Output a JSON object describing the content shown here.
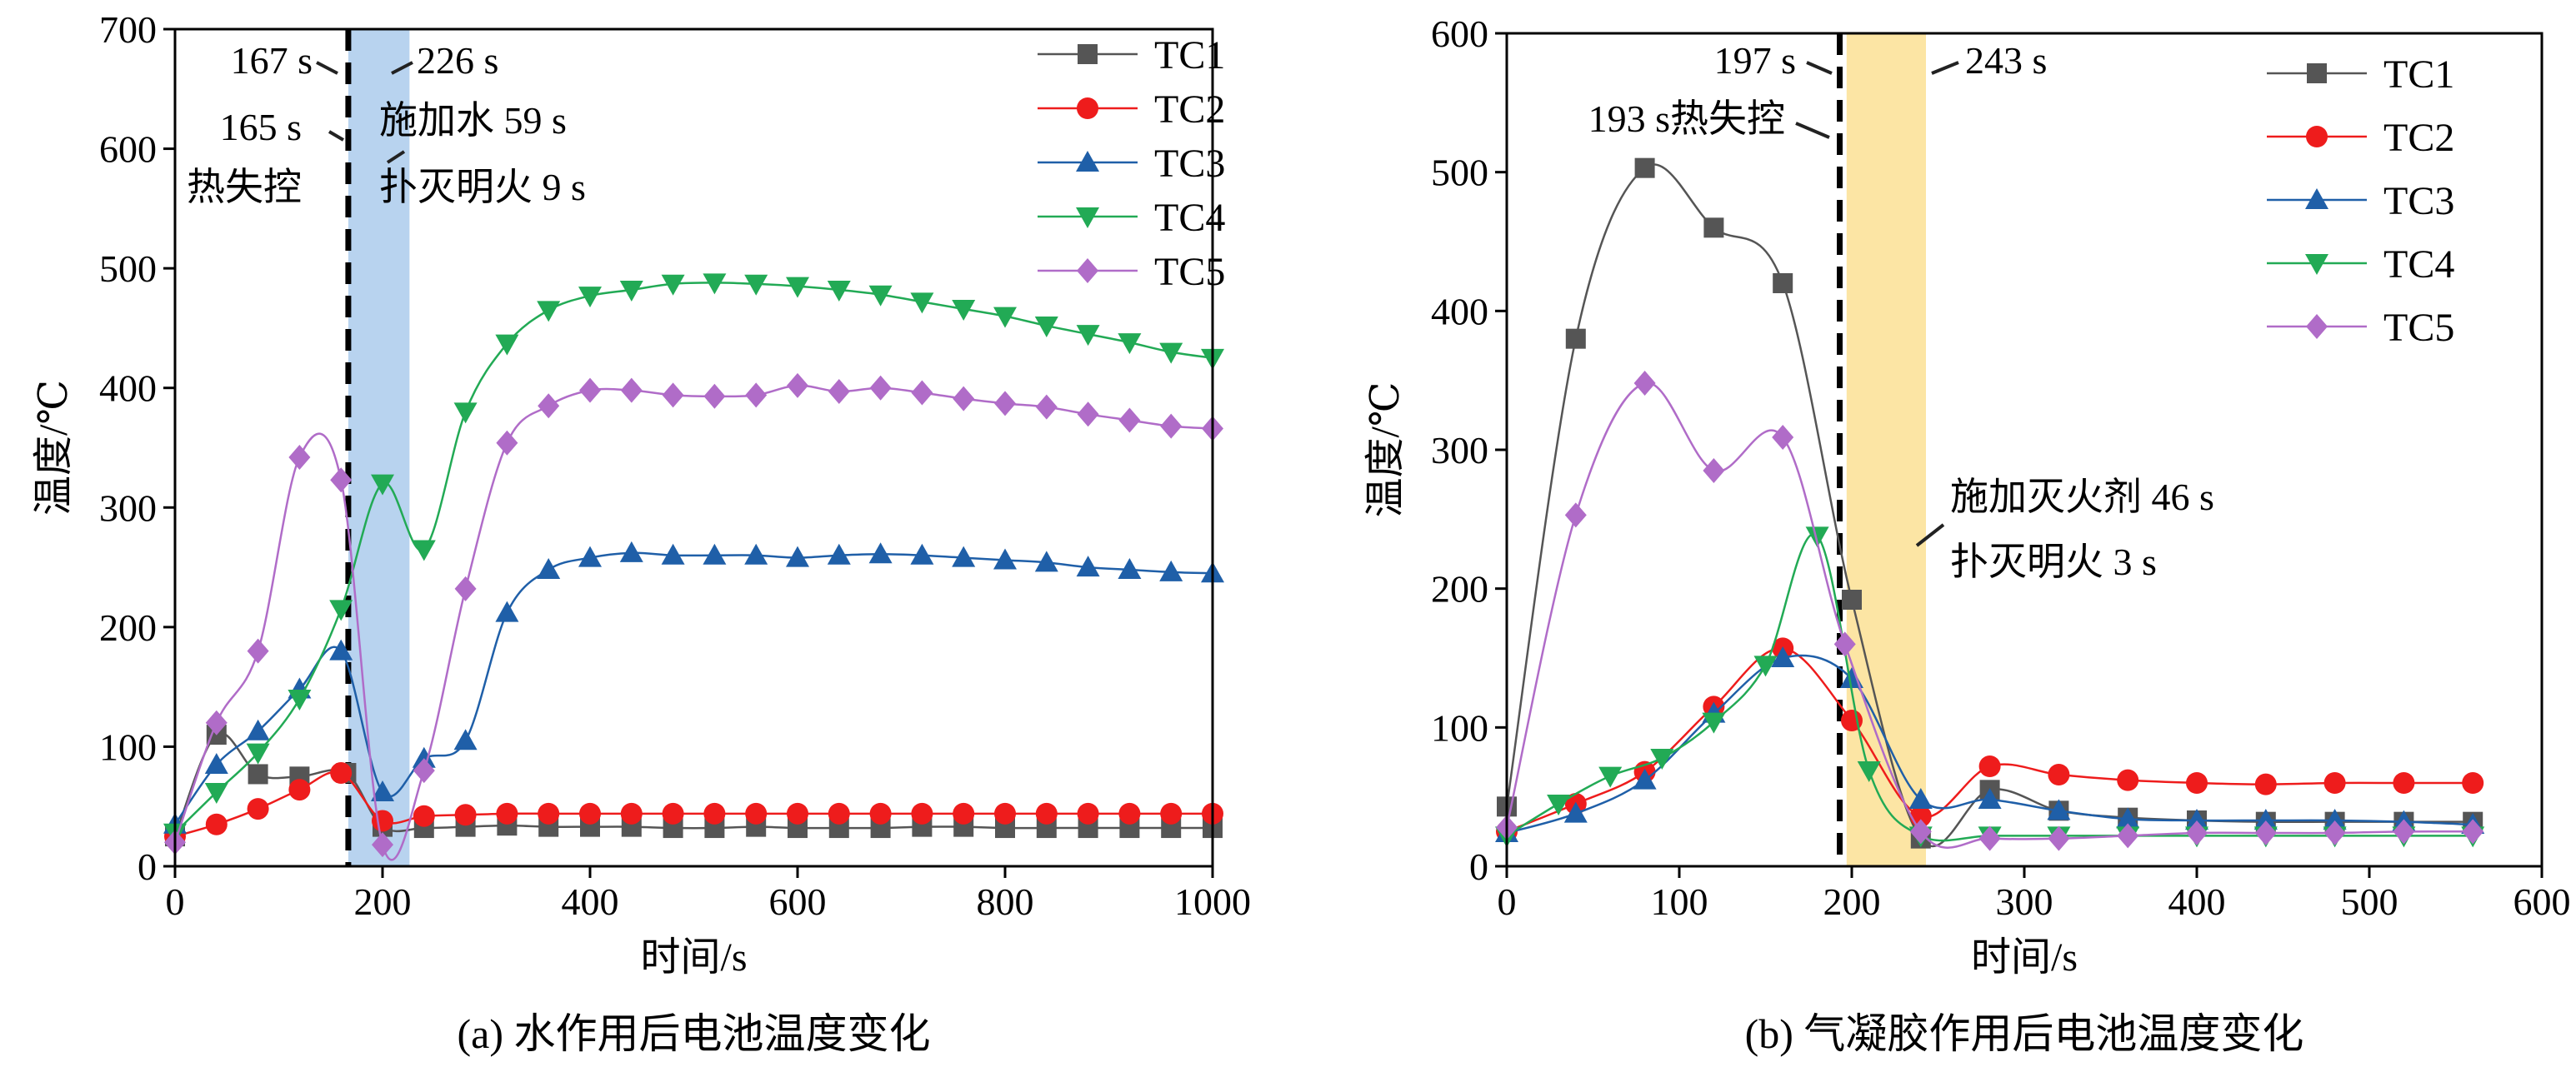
{
  "chart_data": [
    {
      "type": "line",
      "caption": "(a) 水作用后电池温度变化",
      "xlabel": "时间/s",
      "ylabel": "温度/℃",
      "xlim": [
        0,
        1000
      ],
      "ylim": [
        0,
        700
      ],
      "xticks": [
        0,
        200,
        400,
        600,
        800,
        1000
      ],
      "yticks": [
        0,
        100,
        200,
        300,
        400,
        500,
        600,
        700
      ],
      "grid": false,
      "legend_position": "top-right",
      "shaded_region": {
        "x": [
          167,
          226
        ],
        "color": "#b8d3ef"
      },
      "dashed_line_x": 167,
      "annotations": [
        "167 s",
        "226 s",
        "165 s",
        "热失控",
        "施加水 59 s",
        "扑灭明火 9 s"
      ],
      "series": [
        {
          "name": "TC1",
          "color": "#555555",
          "marker": "square",
          "x": [
            0,
            40,
            80,
            120,
            165,
            200,
            240,
            280,
            320,
            360,
            400,
            440,
            480,
            520,
            560,
            600,
            640,
            680,
            720,
            760,
            800,
            840,
            880,
            920,
            960,
            1000
          ],
          "y": [
            25,
            110,
            77,
            75,
            78,
            33,
            32,
            33,
            34,
            33,
            33,
            33,
            32,
            32,
            33,
            32,
            32,
            32,
            33,
            33,
            32,
            32,
            32,
            32,
            32,
            32
          ]
        },
        {
          "name": "TC2",
          "color": "#ee1c1c",
          "marker": "circle",
          "x": [
            0,
            40,
            80,
            120,
            160,
            200,
            240,
            280,
            320,
            360,
            400,
            440,
            480,
            520,
            560,
            600,
            640,
            680,
            720,
            760,
            800,
            840,
            880,
            920,
            960,
            1000
          ],
          "y": [
            25,
            35,
            48,
            64,
            78,
            38,
            42,
            43,
            44,
            44,
            44,
            44,
            44,
            44,
            44,
            44,
            44,
            44,
            44,
            44,
            44,
            44,
            44,
            44,
            44,
            44
          ]
        },
        {
          "name": "TC3",
          "color": "#1f5fa8",
          "marker": "triangle-up",
          "x": [
            0,
            40,
            80,
            120,
            160,
            200,
            240,
            280,
            320,
            360,
            400,
            440,
            480,
            520,
            560,
            600,
            640,
            680,
            720,
            760,
            800,
            840,
            880,
            920,
            960,
            1000
          ],
          "y": [
            35,
            85,
            113,
            148,
            180,
            62,
            90,
            105,
            212,
            248,
            258,
            262,
            260,
            260,
            260,
            258,
            260,
            261,
            260,
            258,
            256,
            254,
            250,
            248,
            246,
            245
          ]
        },
        {
          "name": "TC4",
          "color": "#22aa55",
          "marker": "triangle-down",
          "x": [
            0,
            40,
            80,
            120,
            160,
            200,
            240,
            280,
            320,
            360,
            400,
            440,
            480,
            520,
            560,
            600,
            640,
            680,
            720,
            760,
            800,
            840,
            880,
            920,
            960,
            1000
          ],
          "y": [
            28,
            62,
            95,
            140,
            215,
            320,
            265,
            380,
            437,
            465,
            477,
            482,
            487,
            488,
            487,
            485,
            482,
            478,
            472,
            466,
            460,
            452,
            445,
            438,
            430,
            425
          ]
        },
        {
          "name": "TC5",
          "color": "#b06cc8",
          "marker": "diamond",
          "x": [
            0,
            40,
            80,
            120,
            160,
            200,
            240,
            280,
            320,
            360,
            400,
            440,
            480,
            520,
            560,
            600,
            640,
            680,
            720,
            760,
            800,
            840,
            880,
            920,
            960,
            1000
          ],
          "y": [
            20,
            120,
            180,
            342,
            323,
            18,
            80,
            232,
            354,
            385,
            398,
            398,
            394,
            393,
            394,
            402,
            397,
            400,
            396,
            391,
            387,
            384,
            378,
            373,
            368,
            366
          ]
        }
      ]
    },
    {
      "type": "line",
      "caption": "(b) 气凝胶作用后电池温度变化",
      "xlabel": "时间/s",
      "ylabel": "温度/℃",
      "xlim": [
        0,
        600
      ],
      "ylim": [
        0,
        600
      ],
      "xticks": [
        0,
        100,
        200,
        300,
        400,
        500,
        600
      ],
      "yticks": [
        0,
        100,
        200,
        300,
        400,
        500,
        600
      ],
      "grid": false,
      "legend_position": "top-right",
      "shaded_region": {
        "x": [
          197,
          243
        ],
        "color": "#fce5a4"
      },
      "dashed_line_x": 193,
      "annotations": [
        "197 s",
        "243 s",
        "193 s热失控",
        "施加灭火剂 46 s",
        "扑灭明火 3 s"
      ],
      "series": [
        {
          "name": "TC1",
          "color": "#555555",
          "marker": "square",
          "x": [
            0,
            40,
            80,
            120,
            160,
            200,
            240,
            280,
            320,
            360,
            400,
            440,
            480,
            520,
            560
          ],
          "y": [
            43,
            380,
            503,
            460,
            420,
            192,
            20,
            55,
            40,
            35,
            33,
            32,
            32,
            32,
            32
          ]
        },
        {
          "name": "TC2",
          "color": "#ee1c1c",
          "marker": "circle",
          "x": [
            0,
            40,
            80,
            120,
            160,
            200,
            240,
            280,
            320,
            360,
            400,
            440,
            480,
            520,
            560
          ],
          "y": [
            25,
            45,
            68,
            115,
            157,
            105,
            36,
            72,
            66,
            62,
            60,
            59,
            60,
            60,
            60
          ]
        },
        {
          "name": "TC3",
          "color": "#1f5fa8",
          "marker": "triangle-up",
          "x": [
            0,
            40,
            80,
            120,
            160,
            200,
            240,
            280,
            320,
            360,
            400,
            440,
            480,
            520,
            560
          ],
          "y": [
            24,
            38,
            62,
            110,
            150,
            135,
            48,
            48,
            40,
            34,
            33,
            33,
            33,
            32,
            30
          ]
        },
        {
          "name": "TC4",
          "color": "#22aa55",
          "marker": "triangle-down",
          "x": [
            0,
            30,
            60,
            90,
            120,
            150,
            180,
            210,
            240,
            280,
            320,
            360,
            400,
            440,
            480,
            520,
            560
          ],
          "y": [
            22,
            45,
            65,
            78,
            104,
            145,
            238,
            69,
            22,
            22,
            22,
            22,
            22,
            22,
            22,
            22,
            22
          ]
        },
        {
          "name": "TC5",
          "color": "#b06cc8",
          "marker": "diamond",
          "x": [
            0,
            40,
            80,
            120,
            160,
            196,
            240,
            280,
            320,
            360,
            400,
            440,
            480,
            520,
            560
          ],
          "y": [
            28,
            253,
            348,
            285,
            309,
            160,
            25,
            20,
            20,
            22,
            24,
            24,
            24,
            25,
            25
          ]
        }
      ]
    }
  ]
}
